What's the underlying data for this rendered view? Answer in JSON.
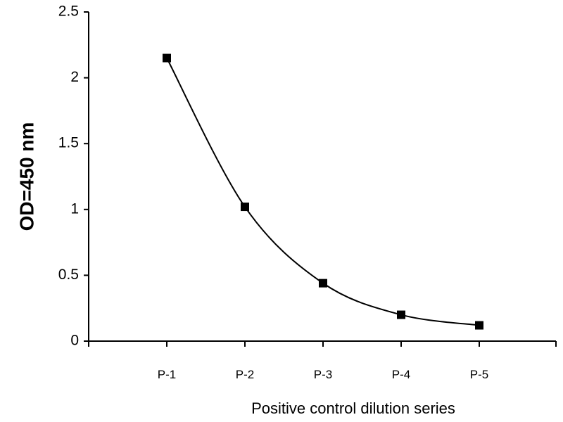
{
  "chart_data": {
    "type": "line",
    "title": "",
    "xlabel": "Positive control dilution series",
    "ylabel": "OD=450 nm",
    "categories": [
      "P-1",
      "P-2",
      "P-3",
      "P-4",
      "P-5"
    ],
    "series": [
      {
        "values": [
          2.15,
          1.02,
          0.44,
          0.2,
          0.12
        ],
        "color": "#000000",
        "marker": "square",
        "smooth": true
      }
    ],
    "ylim": [
      0,
      2.5
    ],
    "yticks": [
      "0",
      "0.5",
      "1",
      "1.5",
      "2",
      "2.5"
    ],
    "grid": false,
    "legend": "none"
  }
}
